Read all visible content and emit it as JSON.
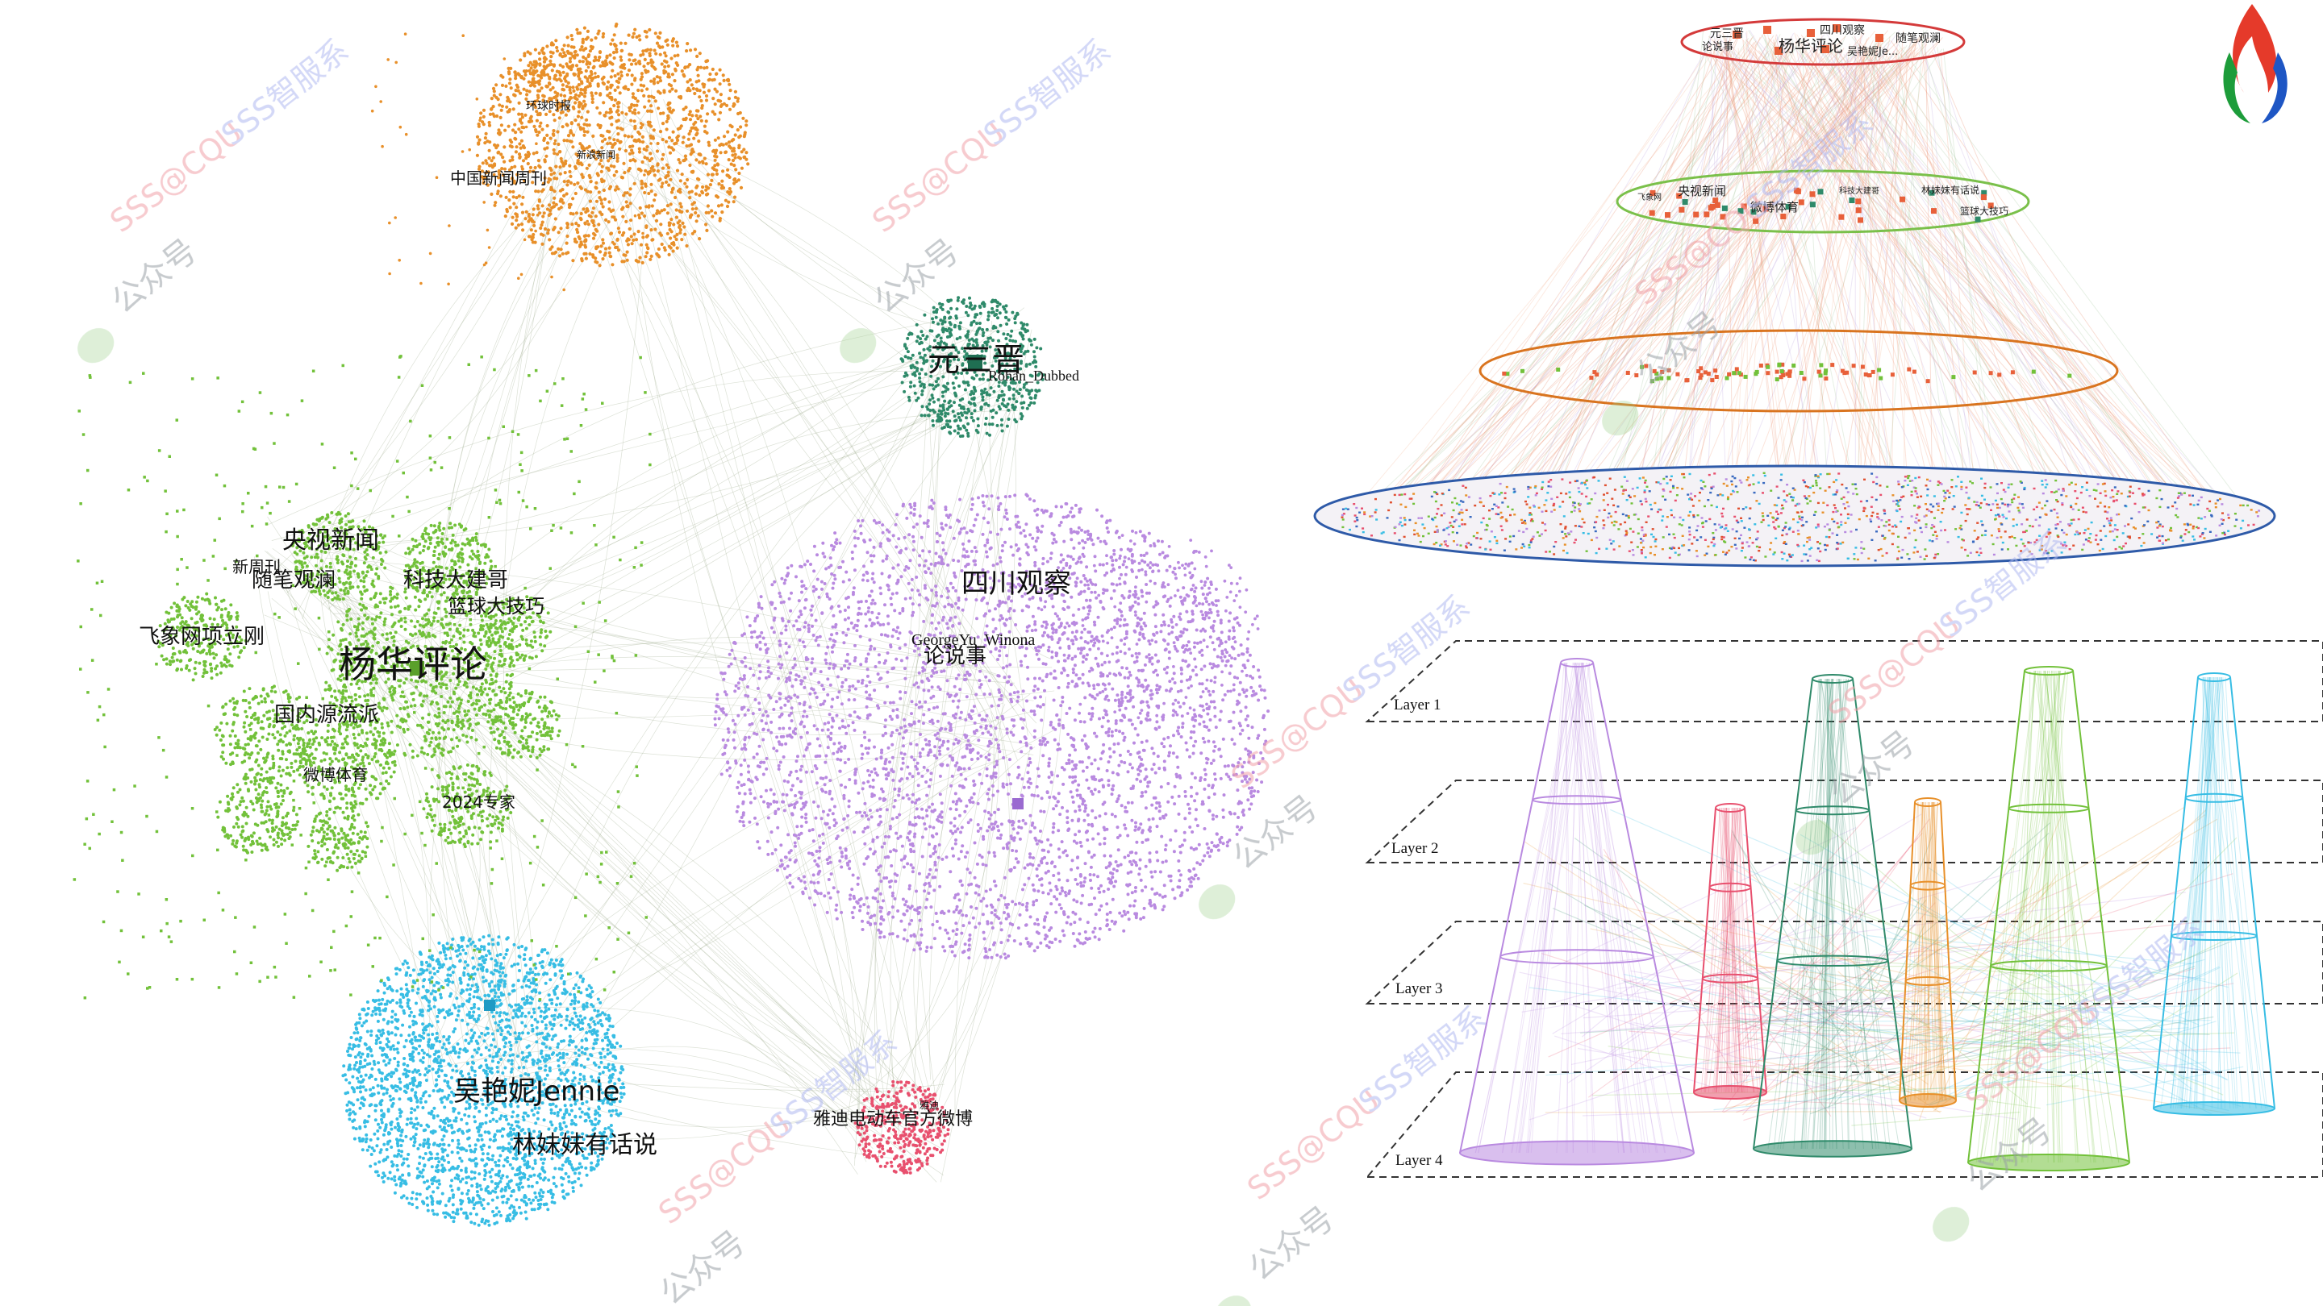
{
  "colors": {
    "orange": "#e8902a",
    "teal": "#2f8a6a",
    "green": "#72c13a",
    "purple": "#b98ae0",
    "cyan": "#37bde4",
    "pink": "#e8506e",
    "edge_gray": "#9aa88a",
    "red_ring": "#d43a3a",
    "green_ring": "#7ac04a",
    "orange_ring": "#d9741f",
    "blue_ring": "#2e5aa8",
    "layer_line": "#333333"
  },
  "network": {
    "labels": {
      "yanghua": "杨华评论",
      "yangshi": "央视新闻",
      "keji": "科技大建哥",
      "lanqiu": "篮球大技巧",
      "feixiang": "飞象网项立刚",
      "suibi": "随笔观澜",
      "xinzhou": "新周刊",
      "guonei": "国内源流派",
      "weibo_tiyu": "微博体育",
      "tiyu_2024": "2024专家",
      "yuansan": "元三晋",
      "rohan": "Rohan_Dubbed",
      "sichuan": "四川观察",
      "george": "GeorgeYu_Winona",
      "lunshuoshi": "论说事",
      "wuyanni": "吴艳妮Jennie",
      "linmeimei": "林妹妹有话说",
      "yadi": "雅迪电动车官方微博",
      "zhongguo_xinwen": "中国新闻周刊",
      "orange_sub1": "环球时报",
      "orange_sub2": "新浪新闻",
      "pink_sub": "雅迪"
    }
  },
  "layers": {
    "ellipse_top_labels": [
      "元三晋",
      "四川观察",
      "随笔观澜",
      "论说事",
      "杨华评论",
      "吴艳妮Je..."
    ],
    "ellipse_second_labels": [
      "央视新闻",
      "微博体育",
      "林妹妹有话说",
      "飞象网",
      "科技大建哥",
      "篮球大技巧"
    ],
    "layer_names": [
      "Layer 1",
      "Layer 2",
      "Layer 3",
      "Layer 4"
    ]
  },
  "watermarks": {
    "brand_a": "SSS@CQU",
    "brand_b": "SSS智服系",
    "public_account": "公众号"
  }
}
